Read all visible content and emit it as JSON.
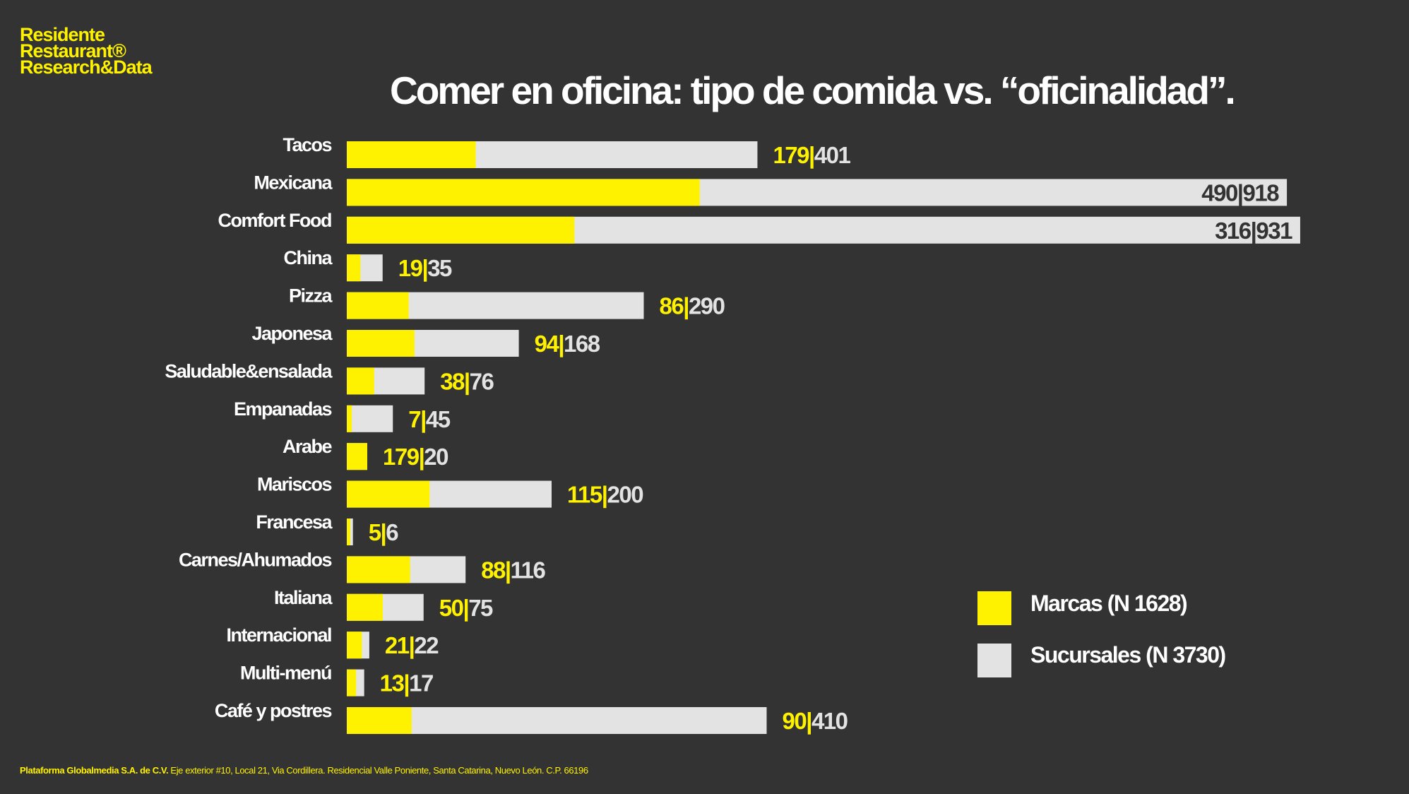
{
  "logo": {
    "lines": [
      "Residente",
      "Restaurant®",
      "Research&Data"
    ]
  },
  "colors": {
    "background": "#333333",
    "marcas": "#FFF200",
    "sucursales": "#E3E3E3",
    "text": "#FFFFFF"
  },
  "chart_data": {
    "type": "bar",
    "orientation": "horizontal",
    "title": "Comer en oficina: tipo de comida vs. “oficinalidad”.",
    "categories": [
      "Tacos",
      "Mexicana",
      "Comfort Food",
      "China",
      "Pizza",
      "Japonesa",
      "Saludable&ensalada",
      "Empanadas",
      "Arabe",
      "Mariscos",
      "Francesa",
      "Carnes/Ahumados",
      "Italiana",
      "Internacional",
      "Multi-menú",
      "Café y postres"
    ],
    "series": [
      {
        "name": "Marcas (N 1628)",
        "values": [
          179,
          490,
          316,
          19,
          86,
          94,
          38,
          7,
          179,
          115,
          5,
          88,
          50,
          21,
          13,
          90
        ]
      },
      {
        "name": "Sucursales (N 3730)",
        "values": [
          401,
          918,
          931,
          35,
          290,
          168,
          76,
          45,
          20,
          200,
          6,
          116,
          75,
          22,
          17,
          410
        ]
      }
    ],
    "legend_position": "bottom-right",
    "grid": false
  },
  "footer": {
    "company": "Plataforma Globalmedia S.A. de C.V.",
    "address": "Eje exterior #10, Local 21, Via Cordillera. Residencial Valle Poniente, Santa Catarina, Nuevo León. C.P. 66196"
  }
}
